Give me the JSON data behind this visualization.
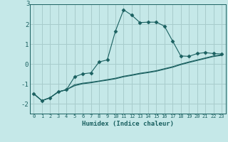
{
  "title": "",
  "xlabel": "Humidex (Indice chaleur)",
  "ylabel": "",
  "background_color": "#c5e8e8",
  "grid_color": "#a8cccc",
  "line_color": "#1a6060",
  "x_ticks": [
    0,
    1,
    2,
    3,
    4,
    5,
    6,
    7,
    8,
    9,
    10,
    11,
    12,
    13,
    14,
    15,
    16,
    17,
    18,
    19,
    20,
    21,
    22,
    23
  ],
  "ylim": [
    -2.5,
    3.0
  ],
  "xlim": [
    -0.5,
    23.5
  ],
  "line1_x": [
    0,
    1,
    2,
    3,
    4,
    5,
    6,
    7,
    8,
    9,
    10,
    11,
    12,
    13,
    14,
    15,
    16,
    17,
    18,
    19,
    20,
    21,
    22,
    23
  ],
  "line1_y": [
    -1.5,
    -1.85,
    -1.7,
    -1.4,
    -1.3,
    -0.65,
    -0.5,
    -0.45,
    0.1,
    0.2,
    1.65,
    2.72,
    2.45,
    2.08,
    2.1,
    2.1,
    1.9,
    1.15,
    0.4,
    0.38,
    0.52,
    0.57,
    0.52,
    0.5
  ],
  "line2_x": [
    0,
    1,
    2,
    3,
    4,
    5,
    6,
    7,
    8,
    9,
    10,
    11,
    12,
    13,
    14,
    15,
    16,
    17,
    18,
    19,
    20,
    21,
    22,
    23
  ],
  "line2_y": [
    -1.5,
    -1.85,
    -1.7,
    -1.4,
    -1.3,
    -1.1,
    -1.0,
    -0.95,
    -0.88,
    -0.82,
    -0.75,
    -0.65,
    -0.58,
    -0.5,
    -0.44,
    -0.37,
    -0.27,
    -0.17,
    -0.04,
    0.07,
    0.17,
    0.27,
    0.37,
    0.43
  ],
  "line3_x": [
    0,
    1,
    2,
    3,
    4,
    5,
    6,
    7,
    8,
    9,
    10,
    11,
    12,
    13,
    14,
    15,
    16,
    17,
    18,
    19,
    20,
    21,
    22,
    23
  ],
  "line3_y": [
    -1.5,
    -1.85,
    -1.7,
    -1.42,
    -1.3,
    -1.05,
    -0.97,
    -0.92,
    -0.86,
    -0.79,
    -0.72,
    -0.62,
    -0.55,
    -0.47,
    -0.41,
    -0.34,
    -0.24,
    -0.14,
    -0.01,
    0.1,
    0.2,
    0.3,
    0.4,
    0.46
  ],
  "yticks": [
    -2,
    -1,
    0,
    1,
    2
  ],
  "marker": "D",
  "marker_size": 2.5,
  "top_label": "3"
}
